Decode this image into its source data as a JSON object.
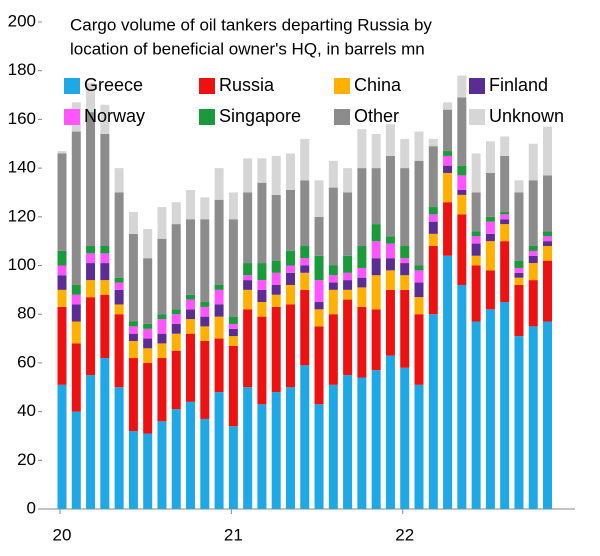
{
  "chart_data": {
    "type": "stacked_bar",
    "title": [
      "Cargo volume of oil tankers departing Russia by",
      "location of beneficial owner's HQ, in barrels mn"
    ],
    "categories": [
      "20",
      null,
      null,
      null,
      null,
      null,
      null,
      null,
      null,
      null,
      null,
      null,
      "21",
      null,
      null,
      null,
      null,
      null,
      null,
      null,
      null,
      null,
      null,
      null,
      "22",
      null,
      null,
      null,
      null,
      null,
      null,
      null,
      null,
      null,
      null
    ],
    "ylim": [
      0,
      200
    ],
    "yticks": [
      0,
      20,
      40,
      60,
      80,
      100,
      120,
      140,
      160,
      180,
      200
    ],
    "series": [
      {
        "name": "Greece",
        "color": "#1ea8e6",
        "values": [
          51,
          40,
          55,
          62,
          50,
          32,
          31,
          36,
          41,
          44,
          37,
          48,
          34,
          50,
          43,
          48,
          50,
          59,
          43,
          51,
          55,
          54,
          57,
          63,
          58,
          51,
          80,
          104,
          92,
          77,
          82,
          85,
          71,
          75,
          77
        ]
      },
      {
        "name": "Russia",
        "color": "#ee1111",
        "values": [
          32,
          28,
          32,
          26,
          30,
          30,
          29,
          26,
          24,
          28,
          32,
          22,
          33,
          32,
          36,
          35,
          34,
          31,
          32,
          29,
          31,
          29,
          25,
          27,
          32,
          29,
          28,
          22,
          29,
          23,
          16,
          25,
          21,
          19,
          25
        ]
      },
      {
        "name": "China",
        "color": "#ffb000",
        "values": [
          7,
          9,
          7,
          6,
          4,
          7,
          6,
          6,
          7,
          6,
          6,
          9,
          4,
          8,
          6,
          5,
          8,
          7,
          7,
          10,
          4,
          8,
          14,
          8,
          6,
          7,
          5,
          12,
          8,
          4,
          12,
          7,
          3,
          7,
          6
        ]
      },
      {
        "name": "Finland",
        "color": "#5b2c91",
        "values": [
          6,
          7,
          7,
          7,
          6,
          3,
          4,
          4,
          4,
          4,
          4,
          5,
          3,
          4,
          5,
          4,
          5,
          3,
          3,
          3,
          4,
          4,
          7,
          5,
          5,
          6,
          5,
          3,
          2,
          5,
          3,
          2,
          2,
          3,
          2
        ]
      },
      {
        "name": "Norway",
        "color": "#ff55ff",
        "values": [
          4,
          4,
          4,
          4,
          3,
          3,
          4,
          6,
          4,
          4,
          4,
          6,
          2,
          2,
          4,
          5,
          3,
          3,
          9,
          3,
          3,
          4,
          7,
          6,
          2,
          5,
          3,
          4,
          6,
          3,
          5,
          2,
          2,
          2,
          2
        ]
      },
      {
        "name": "Singapore",
        "color": "#1a9a3a",
        "values": [
          6,
          4,
          3,
          3,
          2,
          2,
          2,
          2,
          2,
          2,
          2,
          2,
          3,
          5,
          7,
          5,
          6,
          5,
          10,
          4,
          7,
          9,
          7,
          3,
          5,
          2,
          3,
          2,
          4,
          2,
          2,
          1,
          3,
          2,
          2
        ]
      },
      {
        "name": "Other",
        "color": "#8c8c8c",
        "values": [
          40,
          63,
          55,
          46,
          35,
          36,
          27,
          31,
          35,
          31,
          34,
          35,
          40,
          29,
          33,
          27,
          25,
          27,
          16,
          32,
          26,
          32,
          23,
          33,
          32,
          43,
          25,
          17,
          28,
          16,
          18,
          23,
          28,
          27,
          23
        ]
      },
      {
        "name": "Unknown",
        "color": "#d6d6d6",
        "values": [
          1,
          12,
          12,
          12,
          10,
          9,
          12,
          13,
          9,
          12,
          9,
          13,
          11,
          14,
          10,
          16,
          15,
          17,
          15,
          11,
          10,
          16,
          14,
          13,
          12,
          12,
          3,
          3,
          9,
          16,
          13,
          8,
          5,
          15,
          20
        ]
      }
    ]
  }
}
